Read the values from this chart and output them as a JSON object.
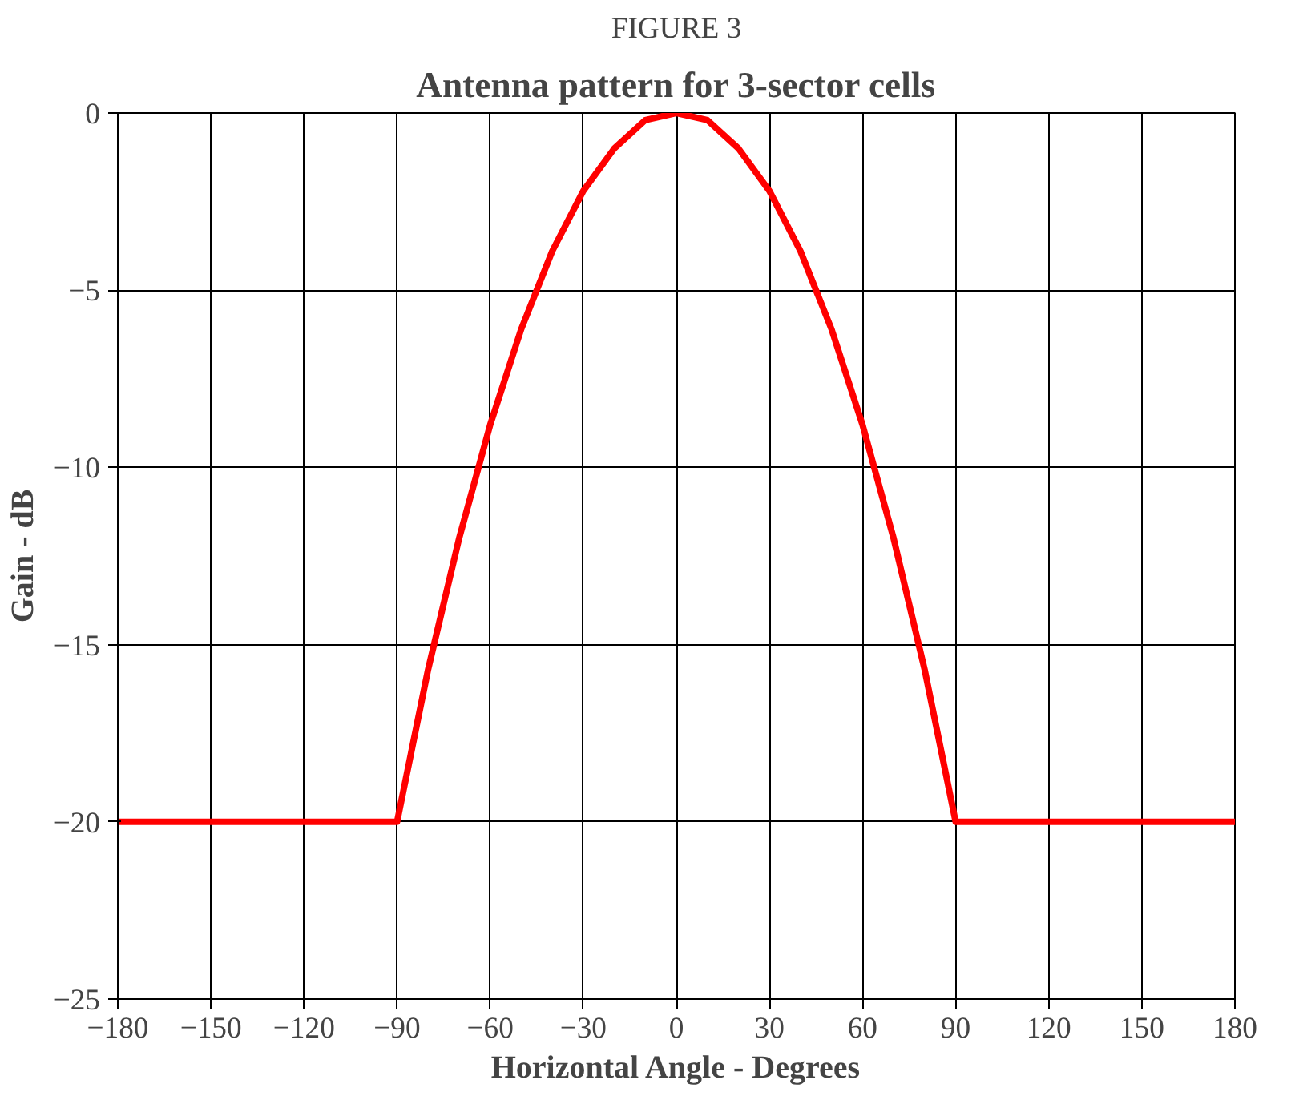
{
  "chart_data": {
    "type": "line",
    "title": "FIGURE 3",
    "subtitle": "Antenna pattern for 3-sector cells",
    "xlabel": "Horizontal Angle - Degrees",
    "ylabel": "Gain - dB",
    "x": [
      -180,
      -150,
      -120,
      -90,
      -80,
      -70,
      -60,
      -50,
      -40,
      -30,
      -20,
      -10,
      0,
      10,
      20,
      30,
      40,
      50,
      60,
      70,
      80,
      90,
      120,
      150,
      180
    ],
    "series": [
      {
        "color": "#ff0000",
        "values": [
          -20,
          -20,
          -20,
          -20,
          -15.7,
          -12,
          -8.8,
          -6.1,
          -3.9,
          -2.2,
          -1,
          -0.2,
          0,
          -0.2,
          -1,
          -2.2,
          -3.9,
          -6.1,
          -8.8,
          -12,
          -15.7,
          -20,
          -20,
          -20,
          -20
        ]
      }
    ],
    "xlim": [
      -180,
      180
    ],
    "xticks": [
      -180,
      -150,
      -120,
      -90,
      -60,
      -30,
      0,
      30,
      60,
      90,
      120,
      150,
      180
    ],
    "ylim": [
      -25,
      0
    ],
    "yticks": [
      -25,
      -20,
      -15,
      -10,
      -5,
      0
    ],
    "grid": true,
    "marker": "none",
    "line_style": "solid"
  }
}
